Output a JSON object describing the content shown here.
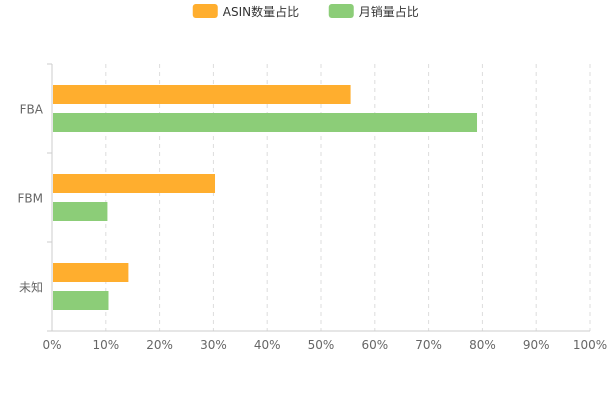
{
  "chart_data": {
    "type": "bar",
    "orientation": "horizontal",
    "categories": [
      "FBA",
      "FBM",
      "未知"
    ],
    "series": [
      {
        "name": "ASIN数量占比",
        "color": "#FFAE2E",
        "values": [
          0.555,
          0.303,
          0.142
        ]
      },
      {
        "name": "月销量占比",
        "color": "#8CCD78",
        "values": [
          0.79,
          0.103,
          0.105
        ]
      }
    ],
    "xlim": [
      0,
      1
    ],
    "x_ticks": [
      "0%",
      "10%",
      "20%",
      "30%",
      "40%",
      "50%",
      "60%",
      "70%",
      "80%",
      "90%",
      "100%"
    ],
    "grid": "vertical-dashed",
    "legend_position": "top-center"
  }
}
